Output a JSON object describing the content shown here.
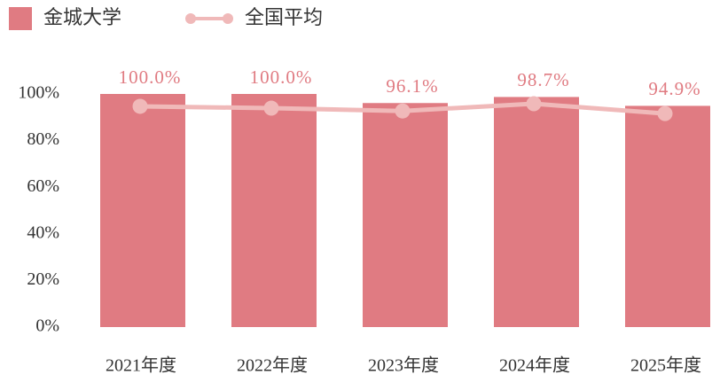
{
  "chart_data": {
    "type": "bar",
    "categories": [
      "2021年度",
      "2022年度",
      "2023年度",
      "2024年度",
      "2025年度"
    ],
    "series": [
      {
        "name": "金城大学",
        "type": "bar",
        "color": "#e07b82",
        "values": [
          100,
          100,
          96.1,
          98.7,
          94.9
        ],
        "value_labels": [
          "100.0%",
          "100.0%",
          "96.1%",
          "98.7%",
          "94.9%"
        ]
      },
      {
        "name": "全国平均",
        "type": "line",
        "color": "#f0b9b9",
        "values": [
          94.7,
          93.9,
          92.7,
          95.8,
          91.6
        ]
      }
    ],
    "ylim": [
      0,
      100
    ],
    "yticks": [
      {
        "value": 0,
        "label": "0%"
      },
      {
        "value": 20,
        "label": "20%"
      },
      {
        "value": 40,
        "label": "40%"
      },
      {
        "value": 60,
        "label": "60%"
      },
      {
        "value": 80,
        "label": "80%"
      },
      {
        "value": 100,
        "label": "100%"
      }
    ],
    "grid": false,
    "legend": "top-left"
  }
}
